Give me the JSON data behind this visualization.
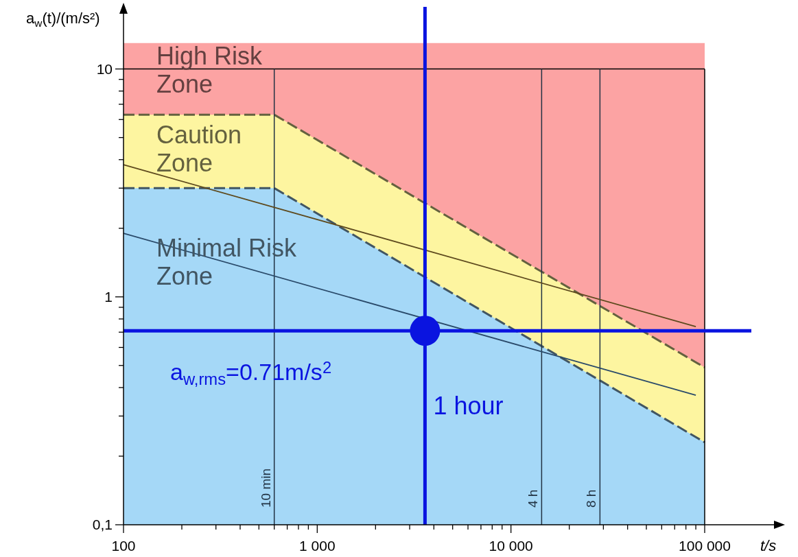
{
  "chart_data": {
    "type": "area",
    "xlabel": "t/s",
    "ylabel": "a$_{w}$(t)/(m/s²)",
    "log": "xy",
    "xlim": [
      100,
      100000
    ],
    "ylim": [
      0.1,
      14
    ],
    "xticks": [
      {
        "value": 100,
        "label": "100"
      },
      {
        "value": 200,
        "label": null
      },
      {
        "value": 300,
        "label": null
      },
      {
        "value": 400,
        "label": null
      },
      {
        "value": 500,
        "label": null
      },
      {
        "value": 600,
        "label": null
      },
      {
        "value": 700,
        "label": null
      },
      {
        "value": 800,
        "label": null
      },
      {
        "value": 900,
        "label": null
      },
      {
        "value": 1000,
        "label": "1 000"
      },
      {
        "value": 2000,
        "label": null
      },
      {
        "value": 3000,
        "label": null
      },
      {
        "value": 4000,
        "label": null
      },
      {
        "value": 5000,
        "label": null
      },
      {
        "value": 6000,
        "label": null
      },
      {
        "value": 7000,
        "label": null
      },
      {
        "value": 8000,
        "label": null
      },
      {
        "value": 9000,
        "label": null
      },
      {
        "value": 10000,
        "label": "10 000"
      },
      {
        "value": 20000,
        "label": null
      },
      {
        "value": 30000,
        "label": null
      },
      {
        "value": 40000,
        "label": null
      },
      {
        "value": 50000,
        "label": null
      },
      {
        "value": 60000,
        "label": null
      },
      {
        "value": 70000,
        "label": null
      },
      {
        "value": 80000,
        "label": null
      },
      {
        "value": 90000,
        "label": null
      },
      {
        "value": 100000,
        "label": "100 000"
      }
    ],
    "yticks": [
      {
        "value": 0.1,
        "label": "0,1"
      },
      {
        "value": 0.2,
        "label": null
      },
      {
        "value": 0.3,
        "label": null
      },
      {
        "value": 0.4,
        "label": null
      },
      {
        "value": 0.5,
        "label": null
      },
      {
        "value": 0.6,
        "label": null
      },
      {
        "value": 0.7,
        "label": null
      },
      {
        "value": 0.8,
        "label": null
      },
      {
        "value": 0.9,
        "label": null
      },
      1,
      {
        "value": 2,
        "label": null
      },
      {
        "value": 3,
        "label": null
      },
      {
        "value": 4,
        "label": null
      },
      {
        "value": 5,
        "label": null
      },
      {
        "value": 6,
        "label": null
      },
      {
        "value": 7,
        "label": null
      },
      {
        "value": 8,
        "label": null
      },
      {
        "value": 9,
        "label": null
      },
      10
    ],
    "series": [
      {
        "color": "#fca3a3",
        "x": [
          100,
          100000
        ],
        "values": [
          13,
          13
        ]
      },
      {
        "color": "#fdf5a0",
        "x": [
          100,
          600,
          100000
        ],
        "values": [
          6.3,
          6.3,
          0.49
        ],
        "line_style": "dashed"
      },
      {
        "color": "#a5d8f7",
        "x": [
          100,
          600,
          100000
        ],
        "values": [
          3,
          3,
          0.23
        ],
        "line_style": "dashed"
      },
      {
        "type": "line",
        "color": "#5e4a1e",
        "x": [
          100,
          90000
        ],
        "values": [
          3.8,
          0.74
        ]
      },
      {
        "type": "line",
        "color": "#2a4a6a",
        "x": [
          100,
          90000
        ],
        "values": [
          1.9,
          0.37
        ]
      },
      {
        "type": "scatter",
        "color": "#0a14e0",
        "x": [
          3600
        ],
        "values": [
          0.71
        ]
      }
    ],
    "ref_lines": [
      {
        "axis": "y",
        "value": 10,
        "label": null,
        "color": "#000000"
      },
      {
        "axis": "x",
        "value": 600,
        "label": "10 min",
        "color": "#223344"
      },
      {
        "axis": "x",
        "value": 14400,
        "label": "4 h",
        "color": "#223344"
      },
      {
        "axis": "x",
        "value": 28800,
        "label": "8 h",
        "color": "#223344"
      },
      {
        "axis": "x",
        "value": 3600,
        "label": "1 hour",
        "color": "#0a14e0"
      },
      {
        "axis": "y",
        "value": 0.71,
        "label": "a$_{w,rms}$=0.71m/s$^{2}$",
        "color": "#0a14e0"
      }
    ],
    "annotations": [
      "High Risk Zone",
      "Caution Zone",
      "Minimal Risk Zone"
    ]
  }
}
